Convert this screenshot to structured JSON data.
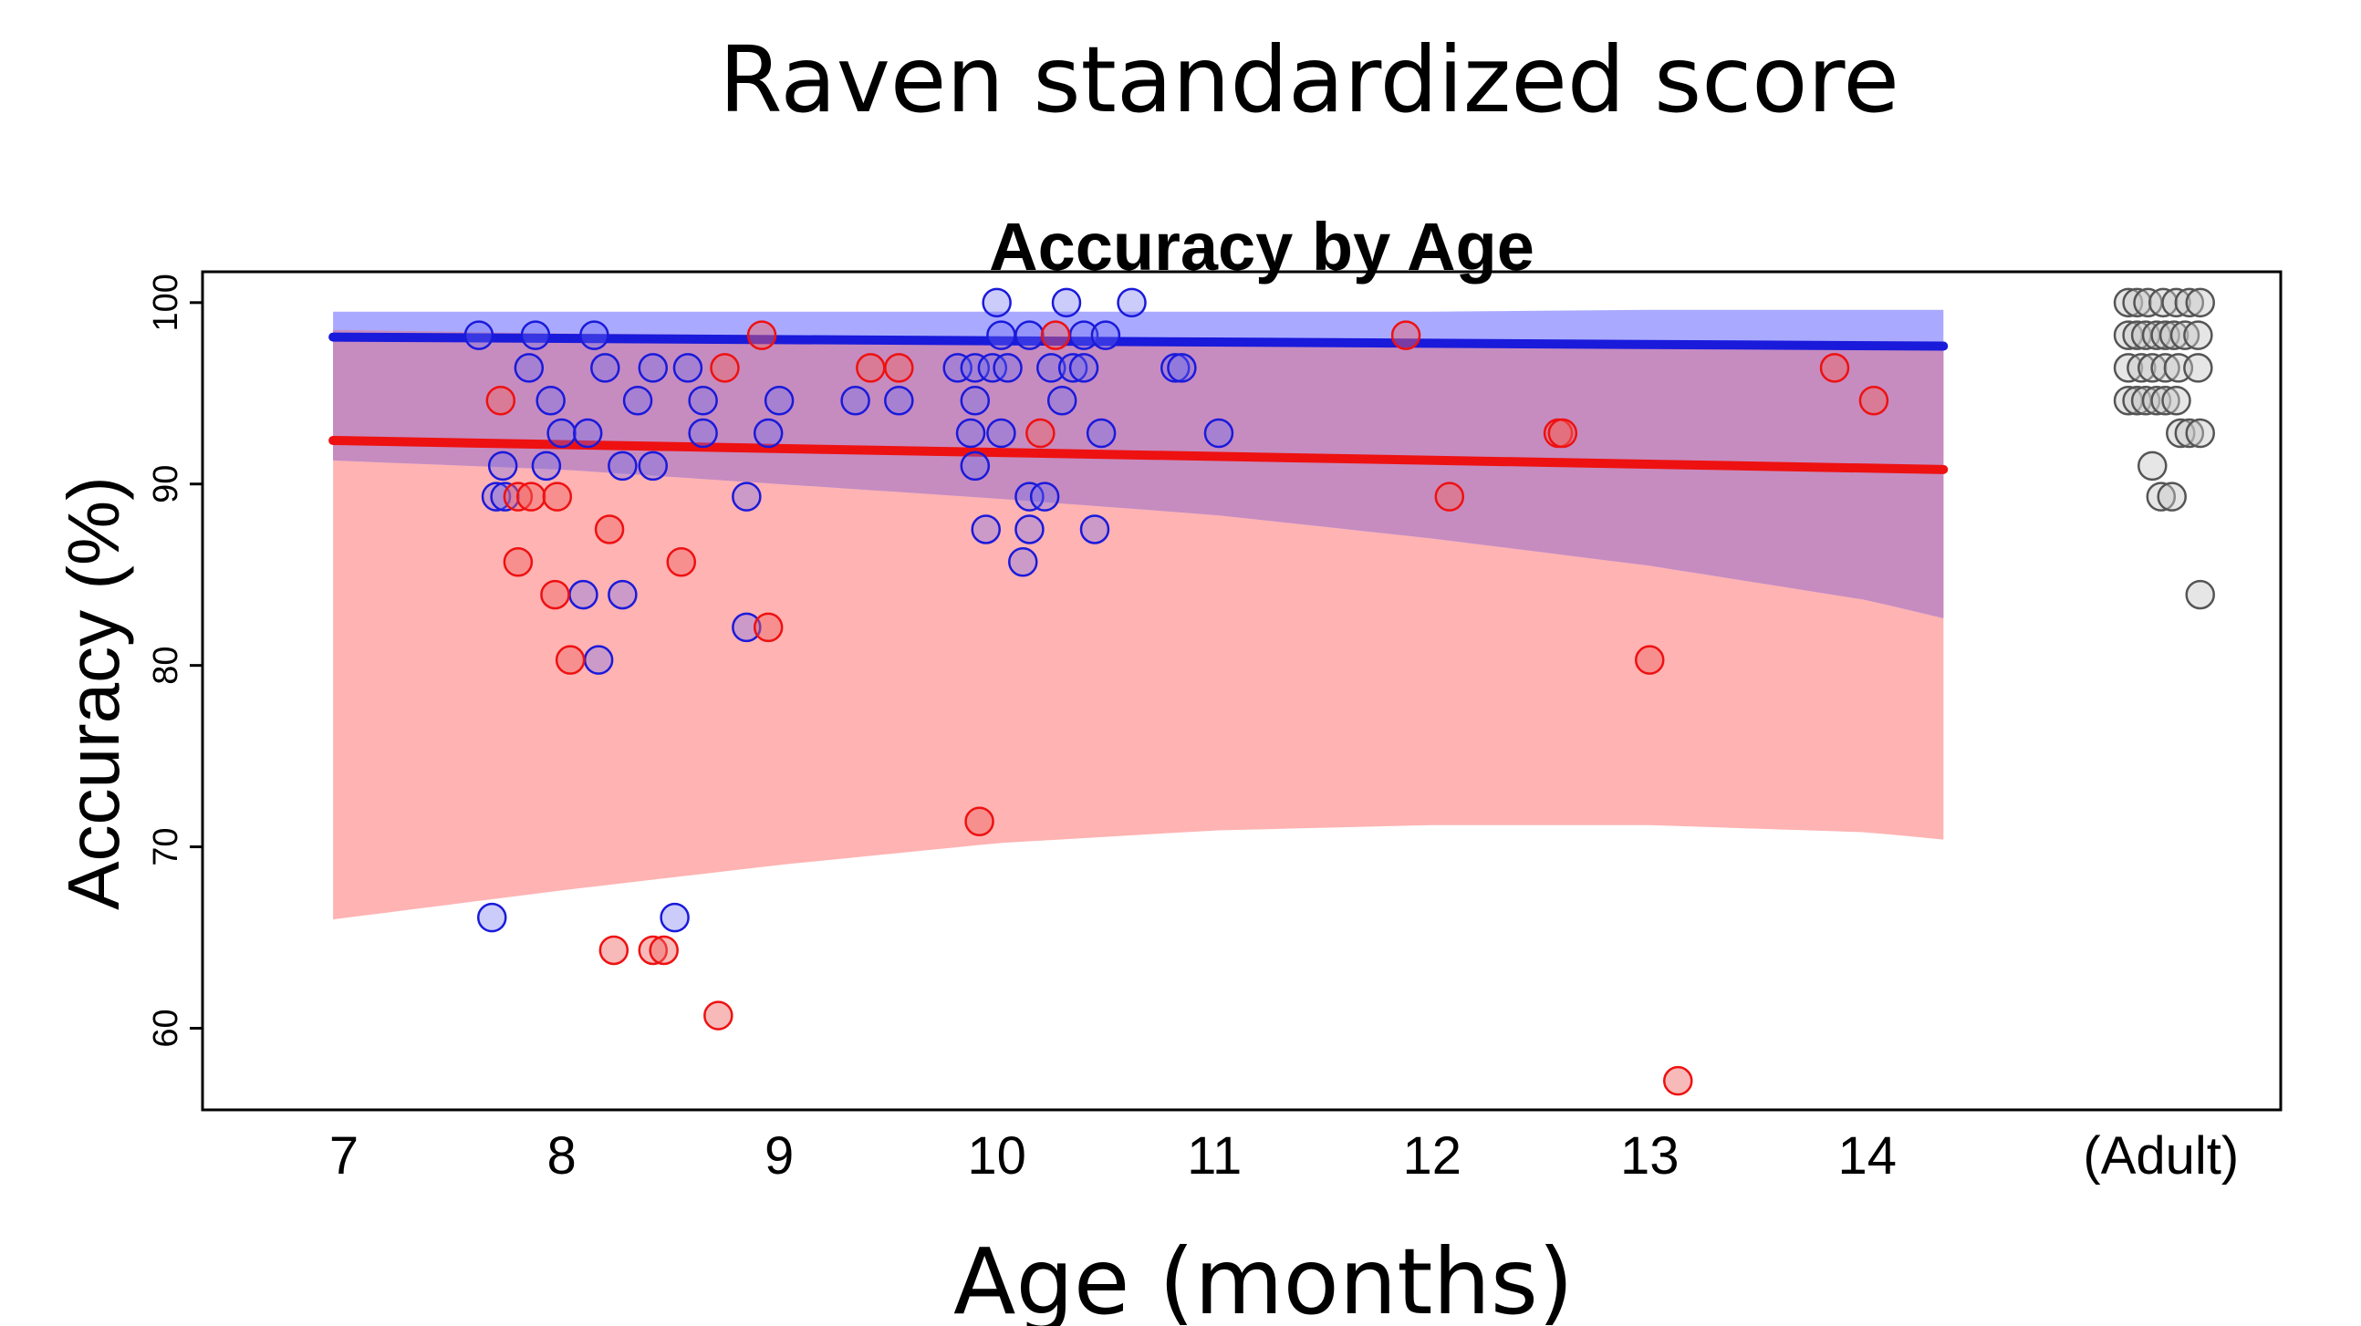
{
  "slide_title": "Raven standardized score",
  "xlabel_outer": "Age (months)",
  "colors": {
    "blue": "#1a1adb",
    "red": "#ee1111",
    "blue_band": "#a9aaff",
    "red_band": "#ffb3b3",
    "overlap_band": "#c68cc0",
    "adult_fill": "#d9d9d9",
    "adult_stroke": "#555555"
  },
  "chart_data": {
    "type": "scatter",
    "title": "Accuracy by Age",
    "ylabel": "Accuracy (%)",
    "xlabel": "",
    "xlim": [
      6.35,
      15.9
    ],
    "ylim": [
      55.5,
      101.7
    ],
    "x_ticks": [
      {
        "value": 7,
        "label": "7"
      },
      {
        "value": 8,
        "label": "8"
      },
      {
        "value": 9,
        "label": "9"
      },
      {
        "value": 10,
        "label": "10"
      },
      {
        "value": 11,
        "label": "11"
      },
      {
        "value": 12,
        "label": "12"
      },
      {
        "value": 13,
        "label": "13"
      },
      {
        "value": 14,
        "label": "14"
      },
      {
        "value": 15.35,
        "label": "(Adult)"
      }
    ],
    "y_ticks": [
      60,
      70,
      80,
      90,
      100
    ],
    "grid": false,
    "series": [
      {
        "color": "blue",
        "fit": {
          "x": [
            6.95,
            14.35
          ],
          "y": [
            98.1,
            97.6
          ]
        },
        "band": {
          "x": [
            6.95,
            8,
            9,
            10,
            11,
            12,
            13,
            14,
            14.35
          ],
          "upper": [
            99.5,
            99.5,
            99.5,
            99.5,
            99.5,
            99.5,
            99.6,
            99.6,
            99.6
          ],
          "lower": [
            91.3,
            90.8,
            90.0,
            89.2,
            88.3,
            87.0,
            85.5,
            83.6,
            82.6
          ]
        },
        "points": [
          {
            "x": 7.62,
            "y": 98.2
          },
          {
            "x": 7.85,
            "y": 96.4
          },
          {
            "x": 7.88,
            "y": 98.2
          },
          {
            "x": 7.95,
            "y": 94.6
          },
          {
            "x": 8.15,
            "y": 98.2
          },
          {
            "x": 8.2,
            "y": 96.4
          },
          {
            "x": 8.42,
            "y": 96.4
          },
          {
            "x": 8.58,
            "y": 96.4
          },
          {
            "x": 8.35,
            "y": 94.6
          },
          {
            "x": 8.65,
            "y": 94.6
          },
          {
            "x": 8.0,
            "y": 92.8
          },
          {
            "x": 8.12,
            "y": 92.8
          },
          {
            "x": 8.65,
            "y": 92.8
          },
          {
            "x": 7.73,
            "y": 91.0
          },
          {
            "x": 7.93,
            "y": 91.0
          },
          {
            "x": 8.28,
            "y": 91.0
          },
          {
            "x": 8.42,
            "y": 91.0
          },
          {
            "x": 7.7,
            "y": 89.3
          },
          {
            "x": 7.74,
            "y": 89.3
          },
          {
            "x": 8.85,
            "y": 89.3
          },
          {
            "x": 8.1,
            "y": 83.9
          },
          {
            "x": 8.28,
            "y": 83.9
          },
          {
            "x": 8.17,
            "y": 80.3
          },
          {
            "x": 8.85,
            "y": 82.1
          },
          {
            "x": 7.68,
            "y": 66.1
          },
          {
            "x": 8.52,
            "y": 66.1
          },
          {
            "x": 9.0,
            "y": 94.6
          },
          {
            "x": 8.95,
            "y": 92.8
          },
          {
            "x": 9.35,
            "y": 94.6
          },
          {
            "x": 9.55,
            "y": 94.6
          },
          {
            "x": 9.82,
            "y": 96.4
          },
          {
            "x": 9.9,
            "y": 96.4
          },
          {
            "x": 9.98,
            "y": 96.4
          },
          {
            "x": 10.05,
            "y": 96.4
          },
          {
            "x": 10.0,
            "y": 100.0
          },
          {
            "x": 10.02,
            "y": 98.2
          },
          {
            "x": 10.15,
            "y": 98.2
          },
          {
            "x": 9.9,
            "y": 94.6
          },
          {
            "x": 9.88,
            "y": 92.8
          },
          {
            "x": 10.02,
            "y": 92.8
          },
          {
            "x": 9.9,
            "y": 91.0
          },
          {
            "x": 10.15,
            "y": 89.3
          },
          {
            "x": 10.22,
            "y": 89.3
          },
          {
            "x": 9.95,
            "y": 87.5
          },
          {
            "x": 10.15,
            "y": 87.5
          },
          {
            "x": 10.12,
            "y": 85.7
          },
          {
            "x": 10.32,
            "y": 100.0
          },
          {
            "x": 10.4,
            "y": 98.2
          },
          {
            "x": 10.5,
            "y": 98.2
          },
          {
            "x": 10.62,
            "y": 100.0
          },
          {
            "x": 10.25,
            "y": 96.4
          },
          {
            "x": 10.35,
            "y": 96.4
          },
          {
            "x": 10.4,
            "y": 96.4
          },
          {
            "x": 10.3,
            "y": 94.6
          },
          {
            "x": 10.48,
            "y": 92.8
          },
          {
            "x": 10.45,
            "y": 87.5
          },
          {
            "x": 10.82,
            "y": 96.4
          },
          {
            "x": 10.85,
            "y": 96.4
          },
          {
            "x": 11.02,
            "y": 92.8
          }
        ]
      },
      {
        "color": "red",
        "fit": {
          "x": [
            6.95,
            14.35
          ],
          "y": [
            92.4,
            90.8
          ]
        },
        "band": {
          "x": [
            6.95,
            8,
            9,
            10,
            11,
            12,
            13,
            14,
            14.35
          ],
          "upper": [
            98.5,
            98.3,
            98.2,
            98.1,
            97.9,
            97.8,
            97.7,
            97.6,
            97.5
          ],
          "lower": [
            66.0,
            67.6,
            69.0,
            70.2,
            70.9,
            71.2,
            71.2,
            70.8,
            70.4
          ]
        },
        "points": [
          {
            "x": 7.72,
            "y": 94.6
          },
          {
            "x": 7.8,
            "y": 89.3
          },
          {
            "x": 7.86,
            "y": 89.3
          },
          {
            "x": 7.98,
            "y": 89.3
          },
          {
            "x": 7.8,
            "y": 85.7
          },
          {
            "x": 7.97,
            "y": 83.9
          },
          {
            "x": 8.04,
            "y": 80.3
          },
          {
            "x": 8.22,
            "y": 87.5
          },
          {
            "x": 8.55,
            "y": 85.7
          },
          {
            "x": 8.75,
            "y": 96.4
          },
          {
            "x": 8.92,
            "y": 98.2
          },
          {
            "x": 8.95,
            "y": 82.1
          },
          {
            "x": 8.24,
            "y": 64.3
          },
          {
            "x": 8.42,
            "y": 64.3
          },
          {
            "x": 8.47,
            "y": 64.3
          },
          {
            "x": 8.72,
            "y": 60.7
          },
          {
            "x": 9.42,
            "y": 96.4
          },
          {
            "x": 9.55,
            "y": 96.4
          },
          {
            "x": 9.92,
            "y": 71.4
          },
          {
            "x": 10.2,
            "y": 92.8
          },
          {
            "x": 10.27,
            "y": 98.2
          },
          {
            "x": 11.88,
            "y": 98.2
          },
          {
            "x": 12.08,
            "y": 89.3
          },
          {
            "x": 12.58,
            "y": 92.8
          },
          {
            "x": 12.6,
            "y": 92.8
          },
          {
            "x": 13.0,
            "y": 80.3
          },
          {
            "x": 13.13,
            "y": 57.1
          },
          {
            "x": 13.85,
            "y": 96.4
          },
          {
            "x": 14.03,
            "y": 94.6
          }
        ]
      },
      {
        "color": "adult",
        "points": [
          {
            "x": 15.2,
            "y": 100.0
          },
          {
            "x": 15.24,
            "y": 100.0
          },
          {
            "x": 15.29,
            "y": 100.0
          },
          {
            "x": 15.36,
            "y": 100.0
          },
          {
            "x": 15.42,
            "y": 100.0
          },
          {
            "x": 15.48,
            "y": 100.0
          },
          {
            "x": 15.53,
            "y": 100.0
          },
          {
            "x": 15.2,
            "y": 98.2
          },
          {
            "x": 15.24,
            "y": 98.2
          },
          {
            "x": 15.28,
            "y": 98.2
          },
          {
            "x": 15.33,
            "y": 98.2
          },
          {
            "x": 15.37,
            "y": 98.2
          },
          {
            "x": 15.41,
            "y": 98.2
          },
          {
            "x": 15.46,
            "y": 98.2
          },
          {
            "x": 15.52,
            "y": 98.2
          },
          {
            "x": 15.2,
            "y": 96.4
          },
          {
            "x": 15.26,
            "y": 96.4
          },
          {
            "x": 15.31,
            "y": 96.4
          },
          {
            "x": 15.37,
            "y": 96.4
          },
          {
            "x": 15.43,
            "y": 96.4
          },
          {
            "x": 15.52,
            "y": 96.4
          },
          {
            "x": 15.2,
            "y": 94.6
          },
          {
            "x": 15.24,
            "y": 94.6
          },
          {
            "x": 15.28,
            "y": 94.6
          },
          {
            "x": 15.33,
            "y": 94.6
          },
          {
            "x": 15.37,
            "y": 94.6
          },
          {
            "x": 15.42,
            "y": 94.6
          },
          {
            "x": 15.44,
            "y": 92.8
          },
          {
            "x": 15.48,
            "y": 92.8
          },
          {
            "x": 15.53,
            "y": 92.8
          },
          {
            "x": 15.31,
            "y": 91.0
          },
          {
            "x": 15.35,
            "y": 89.3
          },
          {
            "x": 15.4,
            "y": 89.3
          },
          {
            "x": 15.53,
            "y": 83.9
          }
        ]
      }
    ]
  }
}
